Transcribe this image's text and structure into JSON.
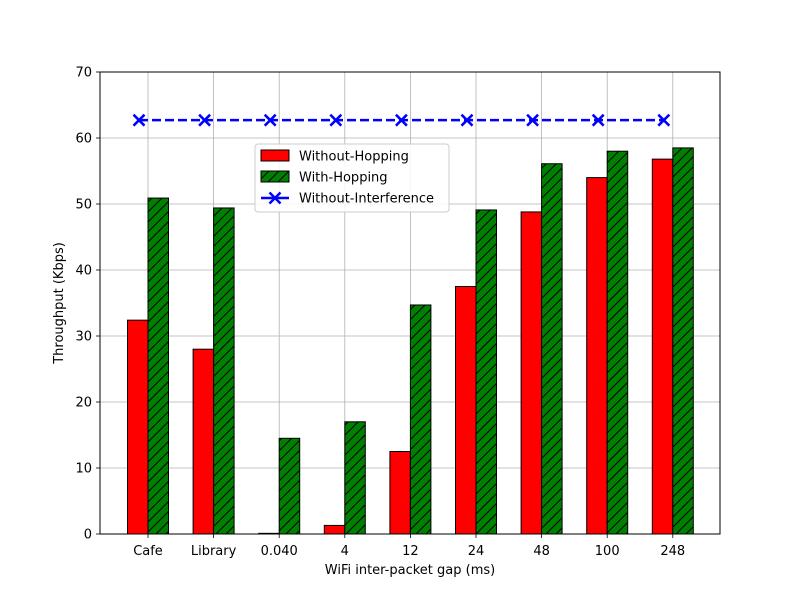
{
  "chart_data": {
    "type": "bar",
    "xlabel": "WiFi inter-packet gap (ms)",
    "ylabel": "Throughput (Kbps)",
    "ylim": [
      0,
      70
    ],
    "yticks": [
      0,
      10,
      20,
      30,
      40,
      50,
      60,
      70
    ],
    "grid": true,
    "legend_position": "upper-center",
    "categories": [
      "Cafe",
      "Library",
      "0.040",
      "4",
      "12",
      "24",
      "48",
      "100",
      "248"
    ],
    "series": [
      {
        "name": "Without-Hopping",
        "kind": "bar",
        "color": "#ff0000",
        "hatch": false,
        "values": [
          32.4,
          28.0,
          0.1,
          1.3,
          12.5,
          37.5,
          48.8,
          54.0,
          56.8
        ]
      },
      {
        "name": "With-Hopping",
        "kind": "bar",
        "color": "#008000",
        "hatch": true,
        "values": [
          50.9,
          49.4,
          14.5,
          17.0,
          34.7,
          49.1,
          56.1,
          58.0,
          58.5
        ]
      },
      {
        "name": "Without-Interference",
        "kind": "line",
        "color": "#0000ff",
        "marker": "x",
        "linestyle": "dashed",
        "values": [
          62.7,
          62.7,
          62.7,
          62.7,
          62.7,
          62.7,
          62.7,
          62.7,
          62.7
        ]
      }
    ]
  }
}
